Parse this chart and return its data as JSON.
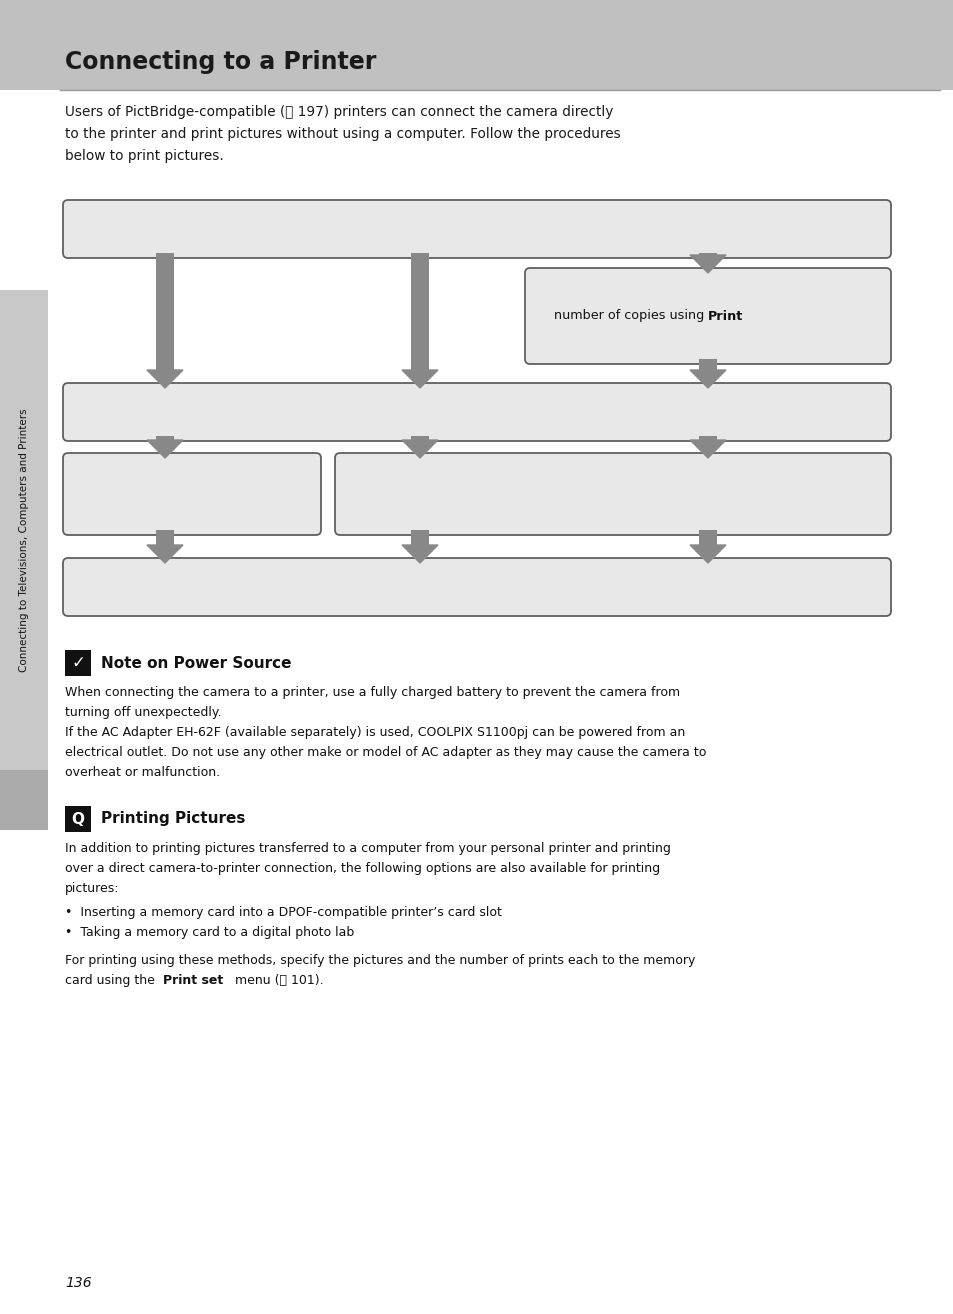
{
  "page_bg": "#ffffff",
  "header_bg": "#c0c0c0",
  "title": "Connecting to a Printer",
  "intro": [
    "Users of PictBridge-compatible (⧉ 197) printers can connect the camera directly",
    "to the printer and print pictures without using a computer. Follow the procedures",
    "below to print pictures."
  ],
  "sidebar_text": "Connecting to Televisions, Computers and Printers",
  "sidebar_bg": "#c8c8c8",
  "tab_bg": "#aaaaaa",
  "box_bg": "#e8e8e8",
  "box_border": "#606060",
  "arrow_color": "#888888",
  "note_power_title": "Note on Power Source",
  "note_power_lines": [
    "When connecting the camera to a printer, use a fully charged battery to prevent the camera from",
    "turning off unexpectedly.",
    "If the AC Adapter EH-62F (available separately) is used, COOLPIX S1100pj can be powered from an",
    "electrical outlet. Do not use any other make or model of AC adapter as they may cause the camera to",
    "overheat or malfunction."
  ],
  "note_printing_title": "Printing Pictures",
  "note_printing_lines": [
    "In addition to printing pictures transferred to a computer from your personal printer and printing",
    "over a direct camera-to-printer connection, the following options are also available for printing",
    "pictures:"
  ],
  "bullets": [
    "Inserting a memory card into a DPOF-compatible printer’s card slot",
    "Taking a memory card to a digital photo lab"
  ],
  "final_line1": "For printing using these methods, specify the pictures and the number of prints each to the memory",
  "page_number": "136"
}
